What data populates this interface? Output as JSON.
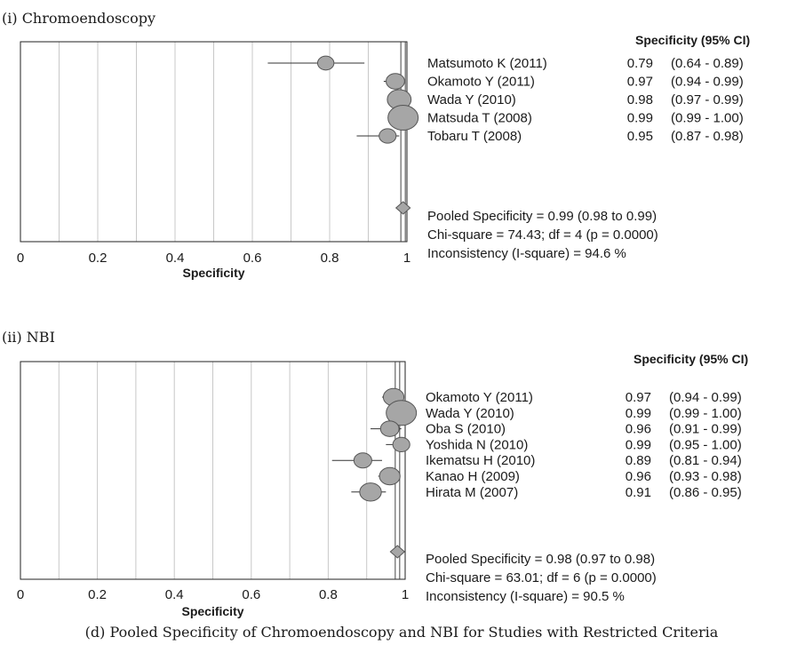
{
  "caption": "(d) Pooled Specificity of Chromoendoscopy and NBI for Studies with Restricted Criteria",
  "colors": {
    "marker_fill": "#a6a6a6",
    "marker_stroke": "#555555",
    "grid": "#c8c8c8",
    "text": "#1a1a1a"
  },
  "chart_data": [
    {
      "type": "forest",
      "panel_label": "(i)  Chromoendoscopy",
      "column_header": "Specificity (95% CI)",
      "xlabel": "Specificity",
      "xlim": [
        0,
        1
      ],
      "ticks": [
        "0",
        "0.2",
        "0.4",
        "0.6",
        "0.8",
        "1"
      ],
      "studies": [
        {
          "name": "Matsumoto K (2011)",
          "value": 0.79,
          "lo": 0.64,
          "hi": 0.89,
          "value_text": "0.79",
          "ci_text": "(0.64 - 0.89)",
          "weight": 0.35
        },
        {
          "name": "Okamoto Y (2011)",
          "value": 0.97,
          "lo": 0.94,
          "hi": 0.99,
          "value_text": "0.97",
          "ci_text": "(0.94 - 0.99)",
          "weight": 0.45
        },
        {
          "name": "Wada Y (2010)",
          "value": 0.98,
          "lo": 0.97,
          "hi": 0.99,
          "value_text": "0.98",
          "ci_text": "(0.97 - 0.99)",
          "weight": 0.7
        },
        {
          "name": "Matsuda T (2008)",
          "value": 0.99,
          "lo": 0.99,
          "hi": 1.0,
          "value_text": "0.99",
          "ci_text": "(0.99 - 1.00)",
          "weight": 1.0
        },
        {
          "name": "Tobaru T (2008)",
          "value": 0.95,
          "lo": 0.87,
          "hi": 0.98,
          "value_text": "0.95",
          "ci_text": "(0.87 - 0.98)",
          "weight": 0.38
        }
      ],
      "pooled": {
        "value": 0.99,
        "lo": 0.98,
        "hi": 0.99
      },
      "summary": [
        "Pooled Specificity = 0.99 (0.98 to 0.99)",
        "Chi-square = 74.43; df =  4 (p = 0.0000)",
        "Inconsistency (I-square) = 94.6 %"
      ]
    },
    {
      "type": "forest",
      "panel_label": "(ii)  NBI",
      "column_header": "Specificity (95% CI)",
      "xlabel": "Specificity",
      "xlim": [
        0,
        1
      ],
      "ticks": [
        "0",
        "0.2",
        "0.4",
        "0.6",
        "0.8",
        "1"
      ],
      "studies": [
        {
          "name": "Okamoto Y (2011)",
          "value": 0.97,
          "lo": 0.94,
          "hi": 0.99,
          "value_text": "0.97",
          "ci_text": "(0.94 - 0.99)",
          "weight": 0.55
        },
        {
          "name": "Wada Y (2010)",
          "value": 0.99,
          "lo": 0.99,
          "hi": 1.0,
          "value_text": "0.99",
          "ci_text": "(0.99 - 1.00)",
          "weight": 1.0
        },
        {
          "name": "Oba S (2010)",
          "value": 0.96,
          "lo": 0.91,
          "hi": 0.99,
          "value_text": "0.96",
          "ci_text": "(0.91 - 0.99)",
          "weight": 0.45
        },
        {
          "name": "Yoshida N (2010)",
          "value": 0.99,
          "lo": 0.95,
          "hi": 1.0,
          "value_text": "0.99",
          "ci_text": "(0.95 - 1.00)",
          "weight": 0.38
        },
        {
          "name": "Ikematsu H (2010)",
          "value": 0.89,
          "lo": 0.81,
          "hi": 0.94,
          "value_text": "0.89",
          "ci_text": "(0.81 - 0.94)",
          "weight": 0.42
        },
        {
          "name": "Kanao H (2009)",
          "value": 0.96,
          "lo": 0.93,
          "hi": 0.98,
          "value_text": "0.96",
          "ci_text": "(0.93 - 0.98)",
          "weight": 0.55
        },
        {
          "name": "Hirata M (2007)",
          "value": 0.91,
          "lo": 0.86,
          "hi": 0.95,
          "value_text": "0.91",
          "ci_text": "(0.86 - 0.95)",
          "weight": 0.6
        }
      ],
      "pooled": {
        "value": 0.98,
        "lo": 0.97,
        "hi": 0.98
      },
      "summary": [
        "Pooled Specificity = 0.98 (0.97 to 0.98)",
        "Chi-square = 63.01; df =  6 (p = 0.0000)",
        "Inconsistency (I-square) = 90.5 %"
      ]
    }
  ]
}
